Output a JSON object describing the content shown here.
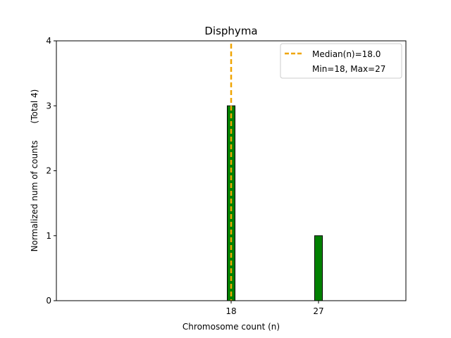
{
  "chart_data": {
    "type": "bar",
    "title": "Disphyma",
    "xlabel": "Chromosome count (n)",
    "ylabel": "Normalized num of counts",
    "ylabel_total": "(Total 4)",
    "x_ticks": [
      18,
      27
    ],
    "y_ticks": [
      0,
      1,
      2,
      3,
      4
    ],
    "xlim": [
      0,
      36
    ],
    "ylim": [
      0,
      4
    ],
    "bars": [
      {
        "x": 18,
        "value": 3
      },
      {
        "x": 27,
        "value": 1
      }
    ],
    "bar_width": 0.8,
    "bar_color": "#008000",
    "median": {
      "value": 18.0,
      "color": "#f0a500"
    },
    "legend": {
      "position": "top-right",
      "entries": [
        "Median(n)=18.0",
        "Min=18, Max=27"
      ]
    }
  }
}
